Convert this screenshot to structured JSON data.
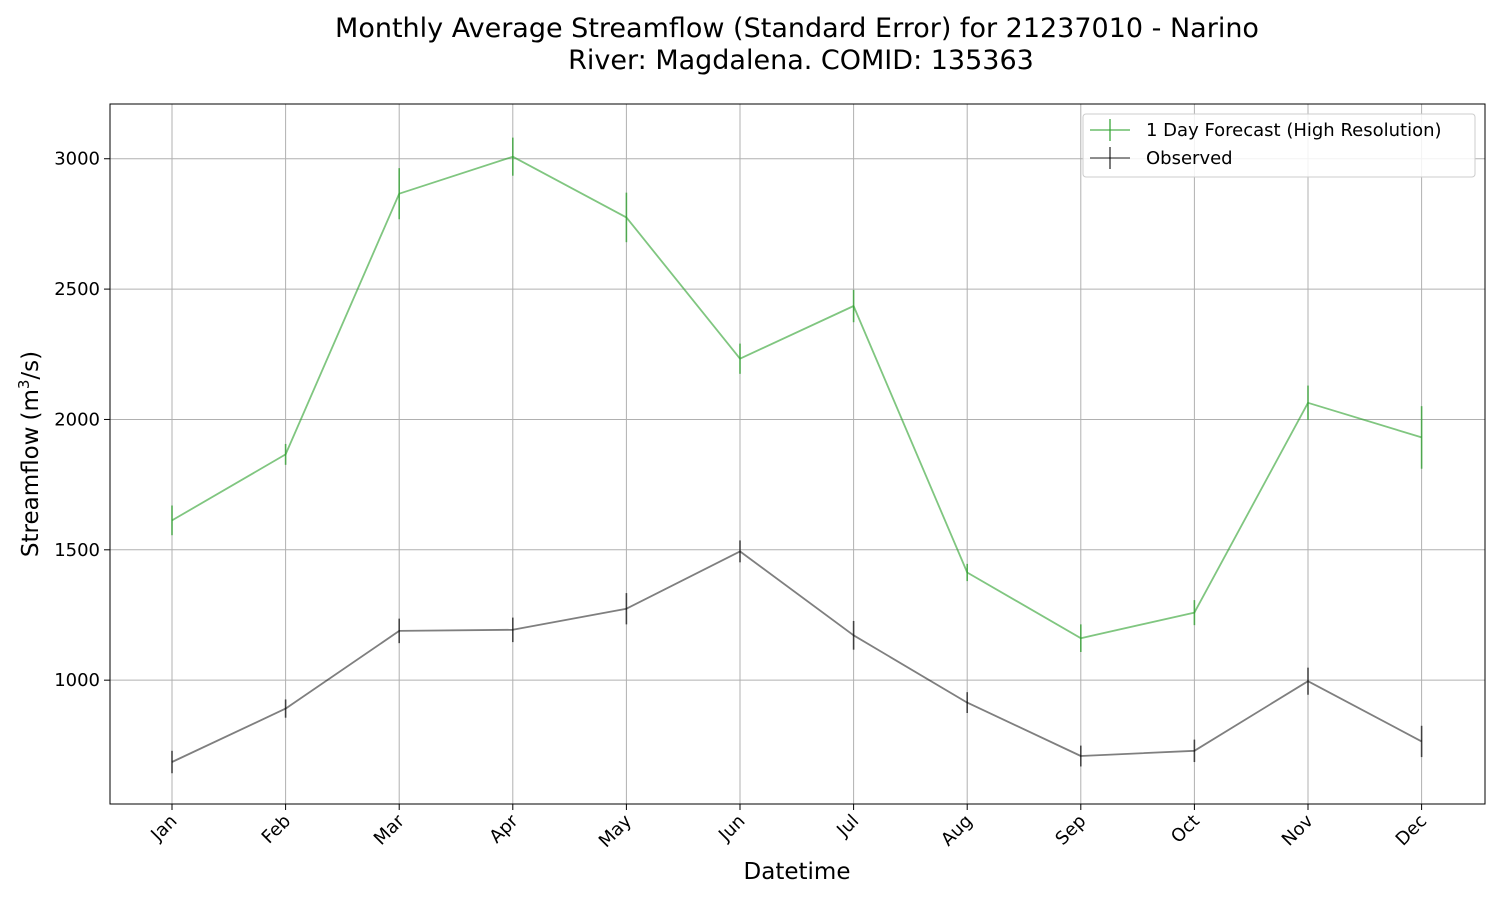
{
  "chart_data": {
    "type": "line",
    "title_lines": [
      "Monthly Average Streamflow (Standard Error) for 21237010 - Narino",
      "River: Magdalena. COMID: 135363"
    ],
    "xlabel": "Datetime",
    "ylabel": "Streamflow",
    "ylabel_unit_base": "m",
    "ylabel_unit_exp": "3",
    "ylabel_unit_tail": "/s",
    "categories": [
      "Jan",
      "Feb",
      "Mar",
      "Apr",
      "May",
      "Jun",
      "Jul",
      "Aug",
      "Sep",
      "Oct",
      "Nov",
      "Dec"
    ],
    "ylim": [
      525,
      3210
    ],
    "yticks": [
      "1000",
      "1500",
      "2000",
      "2500",
      "3000"
    ],
    "grid": true,
    "legend_position": "top-right",
    "series": [
      {
        "name": "1 Day Forecast (High Resolution)",
        "color": "#2ca02c",
        "values": [
          1613,
          1866,
          2866,
          3008,
          2775,
          2233,
          2435,
          1413,
          1161,
          1259,
          2064,
          1931
        ],
        "errors": [
          57,
          40,
          98,
          73,
          95,
          58,
          62,
          33,
          53,
          48,
          66,
          120
        ]
      },
      {
        "name": "Observed",
        "color": "#000000",
        "values": [
          686,
          891,
          1189,
          1193,
          1274,
          1494,
          1172,
          914,
          709,
          729,
          996,
          765
        ],
        "errors": [
          43,
          35,
          47,
          47,
          60,
          42,
          55,
          40,
          40,
          43,
          52,
          60
        ]
      }
    ]
  }
}
